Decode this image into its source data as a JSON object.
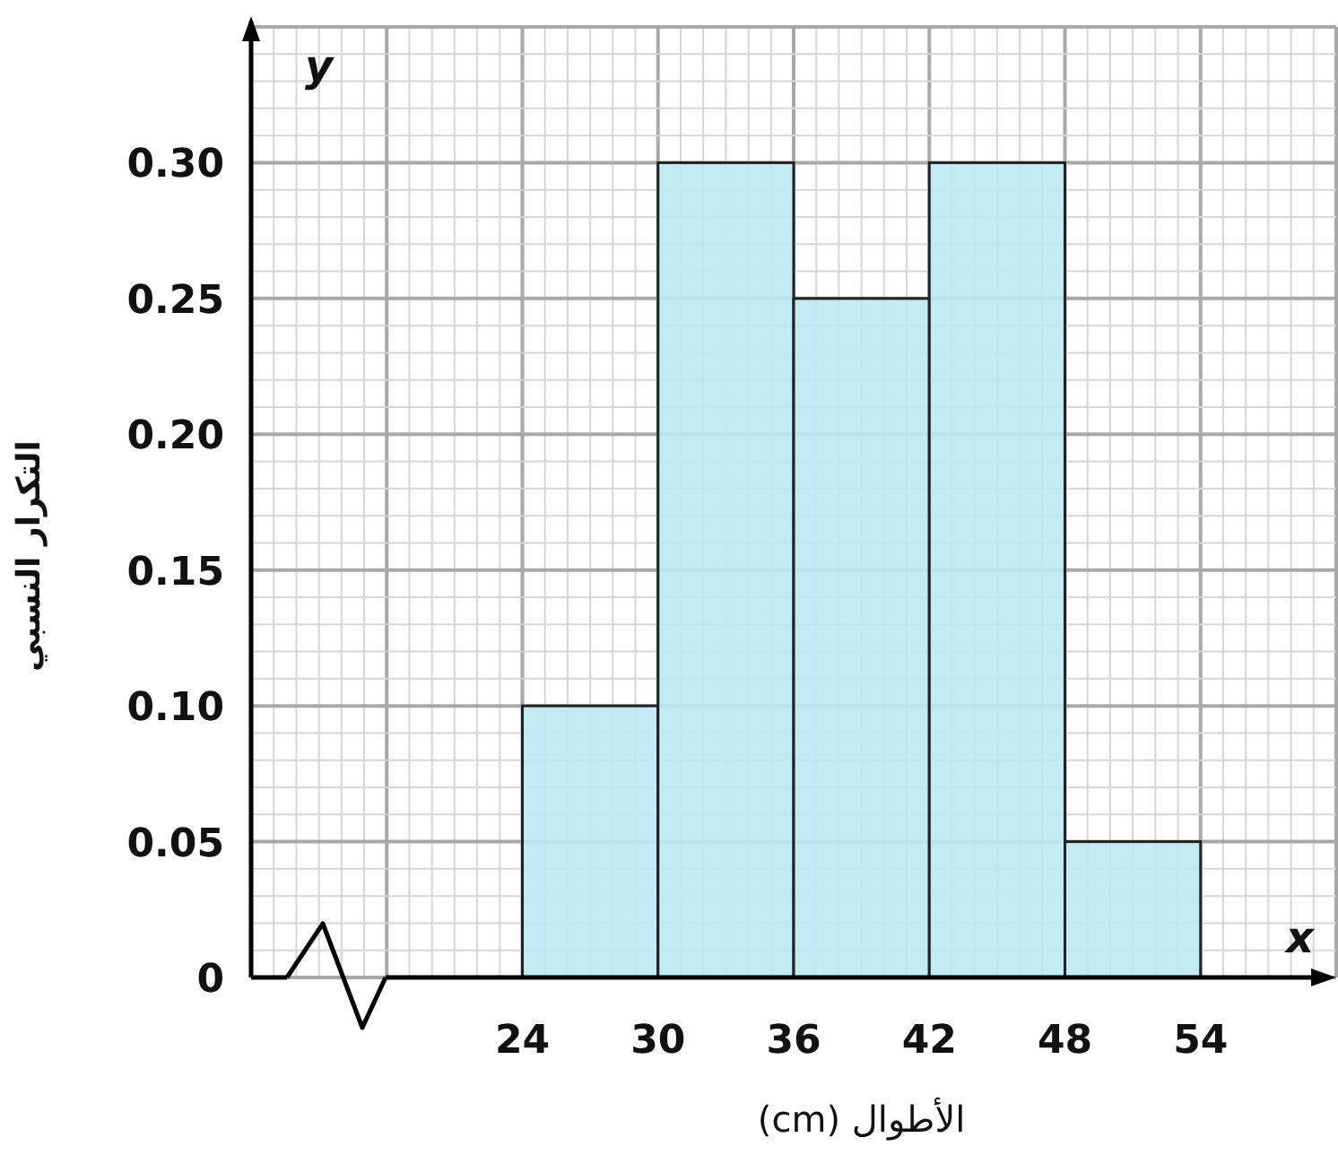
{
  "chart_data": {
    "type": "histogram",
    "xlabel": "الأطوال (cm)",
    "ylabel": "التكرار النسبي",
    "annotations": [
      "x",
      "y"
    ],
    "bins": [
      24,
      30,
      36,
      42,
      48,
      54
    ],
    "values": [
      0.1,
      0.3,
      0.25,
      0.3,
      0.05
    ],
    "color": "#bde9f2",
    "xlim": [
      12,
      60
    ],
    "ylim": [
      0,
      0.35
    ],
    "xticks": [
      24,
      30,
      36,
      42,
      48,
      54
    ],
    "yticks": [
      0,
      0.05,
      {
        "value": 0.1,
        "label": "0.10"
      },
      0.15,
      {
        "value": 0.2,
        "label": "0.20"
      },
      0.25,
      {
        "value": 0.3,
        "label": "0.30"
      }
    ],
    "grid": true
  }
}
